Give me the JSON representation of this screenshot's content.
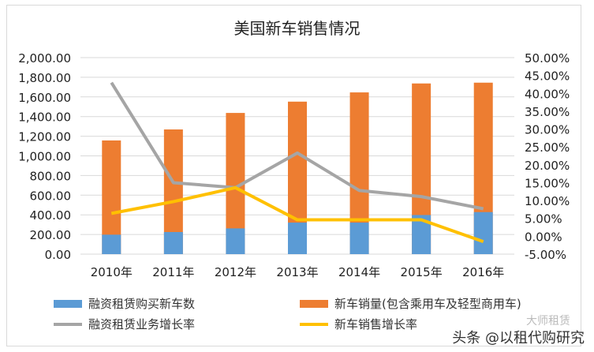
{
  "chart_data": {
    "type": "bar",
    "title": "美国新车销售情况",
    "categories": [
      "2010年",
      "2011年",
      "2012年",
      "2013年",
      "2014年",
      "2015年",
      "2016年"
    ],
    "left_axis": {
      "ylim": [
        0,
        2000
      ],
      "ticks": [
        "0.00",
        "200.00",
        "400.00",
        "600.00",
        "800.00",
        "1,000.00",
        "1,200.00",
        "1,400.00",
        "1,600.00",
        "1,800.00",
        "2,000.00"
      ]
    },
    "right_axis": {
      "ylim": [
        -5,
        50
      ],
      "ticks": [
        "-5.00%",
        "0.00%",
        "5.00%",
        "10.00%",
        "15.00%",
        "20.00%",
        "25.00%",
        "30.00%",
        "35.00%",
        "40.00%",
        "45.00%",
        "50.00%"
      ]
    },
    "grid": true,
    "legend_position": "bottom",
    "series": [
      {
        "name": "新车销量(包含乘用车及轻型商用车)",
        "kind": "bar",
        "axis": "left",
        "color": "#ed7d31",
        "values": [
          1157,
          1269,
          1437,
          1552,
          1646,
          1737,
          1745
        ]
      },
      {
        "name": "融资租赁购买新车数",
        "kind": "bar",
        "axis": "left",
        "color": "#5b9bd5",
        "values": [
          198,
          225,
          262,
          321,
          321,
          398,
          428
        ]
      },
      {
        "name": "融资租赁业务增长率",
        "kind": "line",
        "axis": "right",
        "color": "#a5a5a5",
        "values": [
          43.0,
          15.0,
          13.6,
          23.3,
          12.8,
          11.1,
          7.7
        ]
      },
      {
        "name": "新车销售增长率",
        "kind": "line",
        "axis": "right",
        "color": "#ffc000",
        "values": [
          6.4,
          9.7,
          13.6,
          4.6,
          4.6,
          4.6,
          -1.5
        ]
      }
    ]
  },
  "legend": {
    "items": [
      "融资租赁购买新车数",
      "新车销量(包含乘用车及轻型商用车)",
      "融资租赁业务增长率",
      "新车销售增长率"
    ]
  },
  "watermark": {
    "text": "头条 @以租代购研究",
    "faint": "大师租赁"
  }
}
